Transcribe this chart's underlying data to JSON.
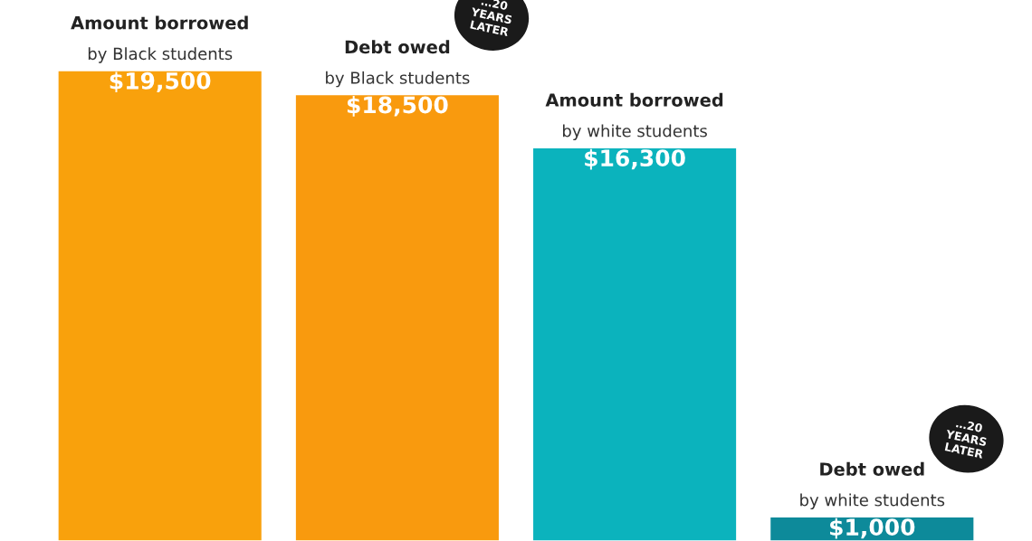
{
  "chart_data": {
    "type": "bar",
    "categories": [
      "Amount borrowed\nby Black students",
      "Debt owed\nby Black students",
      "Amount borrowed\nby white students",
      "Debt owed\nby white students"
    ],
    "values": [
      19500,
      18500,
      16300,
      1000
    ],
    "colors": [
      "#f9a10c",
      "#f99a0e",
      "#0bb3bd",
      "#0d8a9a"
    ],
    "value_labels": [
      "$19,500",
      "$18,500",
      "$16,300",
      "$1,000"
    ],
    "annotations": [
      "…20\nYEARS\nLATER",
      "…20\nYEARS\nLATER"
    ],
    "legend": false
  }
}
